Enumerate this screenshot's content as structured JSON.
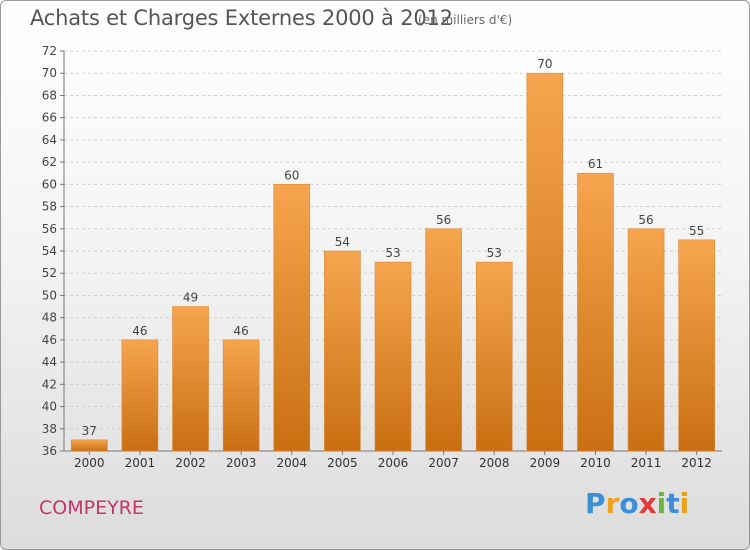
{
  "title": "Achats et Charges Externes 2000 à 2012",
  "subtitle": "(en milliers d'€)",
  "commune": "COMPEYRE",
  "logo": {
    "letters": [
      "P",
      "r",
      "o",
      "x",
      "i",
      "t",
      "i"
    ],
    "colors": [
      "#3c8fd6",
      "#f0a020",
      "#3c8fd6",
      "#e23a3a",
      "#6cb43c",
      "#3c8fd6",
      "#e7a21a"
    ]
  },
  "chart_data": {
    "type": "bar",
    "categories": [
      "2000",
      "2001",
      "2002",
      "2003",
      "2004",
      "2005",
      "2006",
      "2007",
      "2008",
      "2009",
      "2010",
      "2011",
      "2012"
    ],
    "values": [
      37,
      46,
      49,
      46,
      60,
      54,
      53,
      56,
      53,
      70,
      61,
      56,
      55
    ],
    "ylim": [
      36,
      72
    ],
    "yticks": [
      36,
      38,
      40,
      42,
      44,
      46,
      48,
      50,
      52,
      54,
      56,
      58,
      60,
      62,
      64,
      66,
      68,
      70,
      72
    ],
    "grid": true,
    "colors": {
      "bar_top": "#f6a54e",
      "bar_bottom": "#c96f12"
    }
  }
}
